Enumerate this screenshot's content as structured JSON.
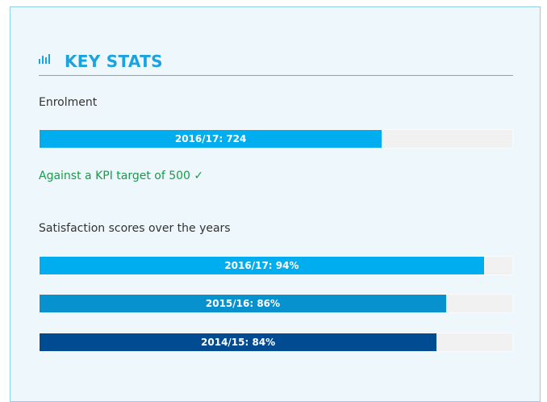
{
  "header": {
    "title": "KEY STATS"
  },
  "enrolment": {
    "heading": "Enrolment",
    "xlim": [
      0,
      1000
    ],
    "bars": [
      {
        "label": "2016/17: 724",
        "value": 724,
        "color": "#00aeef"
      }
    ],
    "note": "Against a KPI target of 500 ✓"
  },
  "satisfaction": {
    "heading": "Satisfaction scores over the years",
    "xlim": [
      0,
      100
    ],
    "bars": [
      {
        "label": "2016/17: 94%",
        "value": 94,
        "color": "#00aeef"
      },
      {
        "label": "2015/16: 86%",
        "value": 86,
        "color": "#0891cf"
      },
      {
        "label": "2014/15: 84%",
        "value": 84,
        "color": "#014b93"
      }
    ]
  }
}
